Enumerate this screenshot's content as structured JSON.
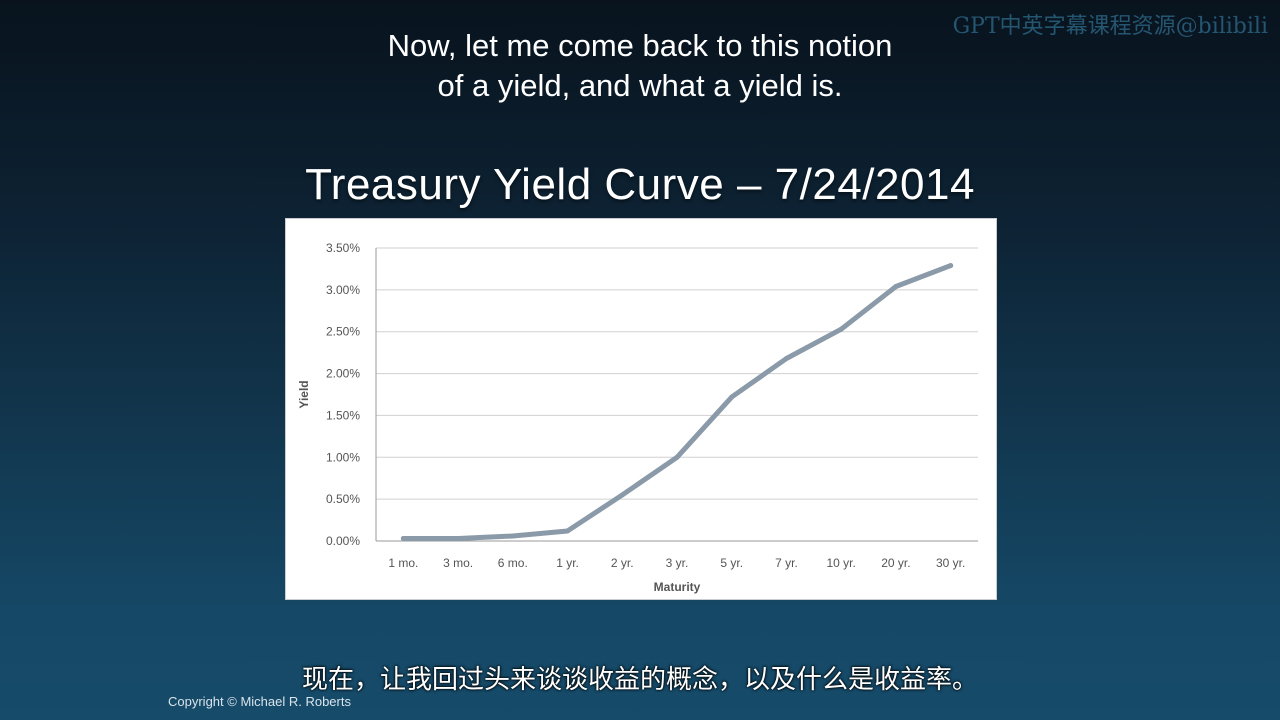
{
  "watermark": "GPT中英字幕课程资源@bilibili",
  "subtitle_en": {
    "line1": "Now, let me come back to this notion",
    "line2": "of a yield, and what a yield is."
  },
  "slide_title": "Treasury Yield Curve – 7/24/2014",
  "subtitle_cn": "现在，让我回过头来谈谈收益的概念，以及什么是收益率。",
  "copyright": "Copyright © Michael R. Roberts",
  "colors": {
    "line": "#8a9aa9",
    "grid": "#d0d0d0"
  },
  "chart_data": {
    "type": "line",
    "title": "",
    "xlabel": "Maturity",
    "ylabel": "Yield",
    "categories": [
      "1 mo.",
      "3 mo.",
      "6 mo.",
      "1 yr.",
      "2 yr.",
      "3 yr.",
      "5 yr.",
      "7 yr.",
      "10 yr.",
      "20 yr.",
      "30 yr."
    ],
    "series": [
      {
        "name": "",
        "values": [
          0.03,
          0.03,
          0.06,
          0.12,
          0.55,
          1.0,
          1.72,
          2.18,
          2.53,
          3.04,
          3.29
        ]
      }
    ],
    "y_ticks": [
      "0.00%",
      "0.50%",
      "1.00%",
      "1.50%",
      "2.00%",
      "2.50%",
      "3.00%",
      "3.50%"
    ],
    "ylim": [
      0,
      3.5
    ],
    "grid": true,
    "legend": "none"
  }
}
